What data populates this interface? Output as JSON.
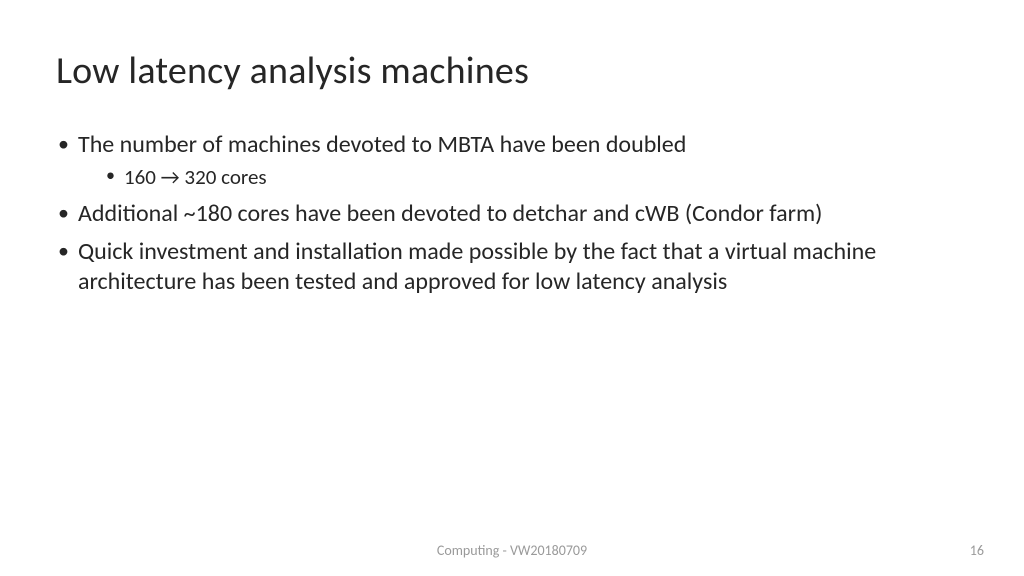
{
  "slide": {
    "title": "Low latency analysis machines",
    "bullets": [
      {
        "text": "The number of machines devoted to MBTA have been doubled",
        "sub": [
          "160 → 320 cores"
        ]
      },
      {
        "text": "Additional ~180 cores have been devoted to detchar and cWB (Condor farm)",
        "sub": []
      },
      {
        "text": "Quick investment and installation made possible by the fact that a virtual machine architecture has been tested and approved for low latency analysis",
        "sub": []
      }
    ],
    "footer_center": "Computing - VW20180709",
    "footer_page": "16"
  },
  "style": {
    "background_color": "#ffffff",
    "title_color": "#262626",
    "title_fontsize_pt": 28,
    "body_color": "#262626",
    "body_fontsize_pt": 18,
    "sub_fontsize_pt": 16,
    "footer_color": "#9a9a9a",
    "footer_fontsize_pt": 11,
    "font_family": "Calibri"
  }
}
